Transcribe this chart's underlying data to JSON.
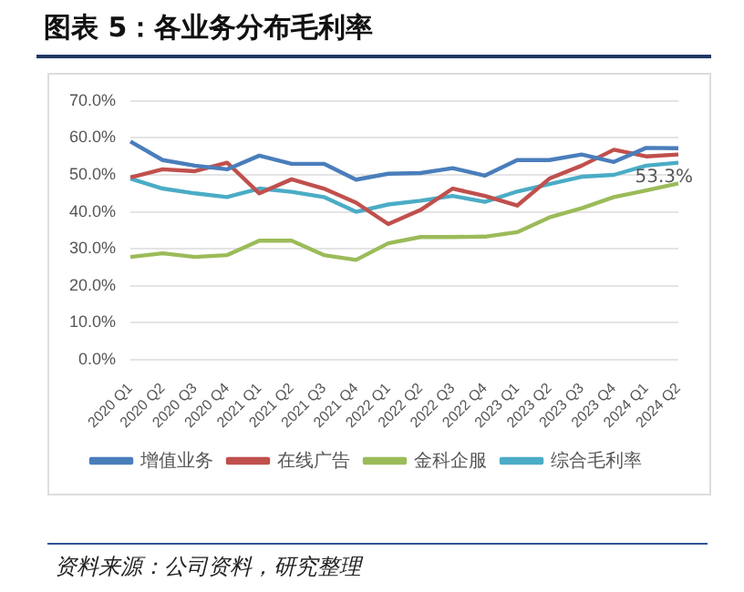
{
  "chart_data": {
    "type": "line",
    "title": "图表 5：各业务分布毛利率",
    "annotations": [
      "资料来源：公司资料，研究整理"
    ],
    "categories": [
      "2020 Q1",
      "2020 Q2",
      "2020 Q3",
      "2020 Q4",
      "2021 Q1",
      "2021 Q2",
      "2021 Q3",
      "2021 Q4",
      "2022 Q1",
      "2022 Q2",
      "2022 Q3",
      "2022 Q4",
      "2023 Q1",
      "2023 Q2",
      "2023 Q3",
      "2023 Q4",
      "2024 Q1",
      "2024 Q2"
    ],
    "series": [
      {
        "name": "增值业务",
        "color": "#4a7ebb",
        "values": [
          59,
          54,
          52.5,
          51.5,
          55.2,
          53,
          53,
          48.7,
          50.3,
          50.5,
          51.8,
          49.8,
          54,
          54,
          55.5,
          53.5,
          57.3,
          57.2
        ]
      },
      {
        "name": "在线广告",
        "color": "#c0504d",
        "values": [
          49.3,
          51.5,
          51,
          53.3,
          45,
          48.8,
          46.3,
          42.5,
          36.7,
          40.5,
          46.3,
          44.3,
          41.7,
          49,
          52.5,
          56.8,
          55,
          55.5
        ]
      },
      {
        "name": "金科企服",
        "color": "#9bbb59",
        "values": [
          27.8,
          28.8,
          27.8,
          28.3,
          32.2,
          32.2,
          28.3,
          27,
          31.5,
          33.2,
          33.2,
          33.3,
          34.5,
          38.5,
          41,
          44,
          45.8,
          47.7
        ]
      },
      {
        "name": "综合毛利率",
        "color": "#4bacc6",
        "values": [
          49,
          46.3,
          45,
          44,
          46.3,
          45.4,
          44,
          40,
          42,
          43,
          44.3,
          42.7,
          45.5,
          47.5,
          49.5,
          50,
          52.5,
          53.3
        ],
        "value_labels": [
          null,
          null,
          null,
          null,
          null,
          null,
          null,
          null,
          null,
          null,
          null,
          null,
          null,
          null,
          null,
          null,
          null,
          "53.3%"
        ]
      }
    ],
    "ylim": [
      0,
      70
    ],
    "yticks": [
      {
        "value": 0,
        "label": "0.0%"
      },
      {
        "value": 10,
        "label": "10.0%"
      },
      {
        "value": 20,
        "label": "20.0%"
      },
      {
        "value": 30,
        "label": "30.0%"
      },
      {
        "value": 40,
        "label": "40.0%"
      },
      {
        "value": 50,
        "label": "50.0%"
      },
      {
        "value": 60,
        "label": "60.0%"
      },
      {
        "value": 70,
        "label": "70.0%"
      }
    ],
    "grid": "y",
    "legend": "bottom",
    "marker": "none",
    "line_style": "solid"
  }
}
